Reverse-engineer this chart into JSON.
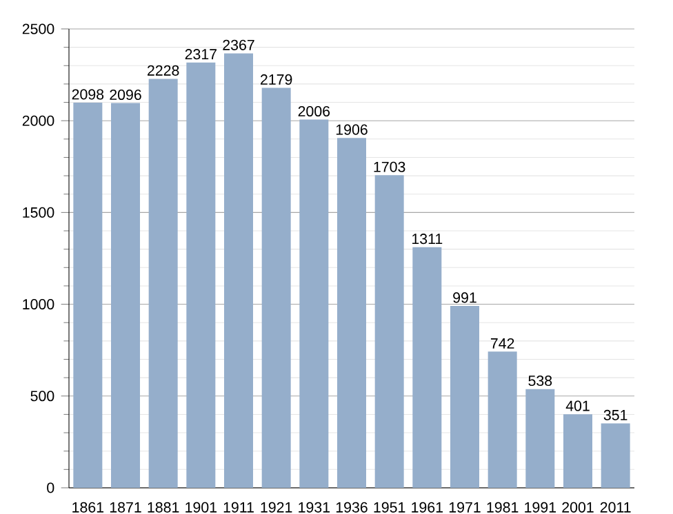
{
  "chart_data": {
    "type": "bar",
    "categories": [
      "1861",
      "1871",
      "1881",
      "1901",
      "1911",
      "1921",
      "1931",
      "1936",
      "1951",
      "1961",
      "1971",
      "1981",
      "1991",
      "2001",
      "2011"
    ],
    "values": [
      2098,
      2096,
      2228,
      2317,
      2367,
      2179,
      2006,
      1906,
      1703,
      1311,
      991,
      742,
      538,
      401,
      351
    ],
    "color": "#95aecb",
    "ylim": [
      0,
      2500
    ],
    "yticks": [
      0,
      500,
      1000,
      1500,
      2000,
      2500
    ],
    "grid": "y",
    "data_labels": true
  }
}
